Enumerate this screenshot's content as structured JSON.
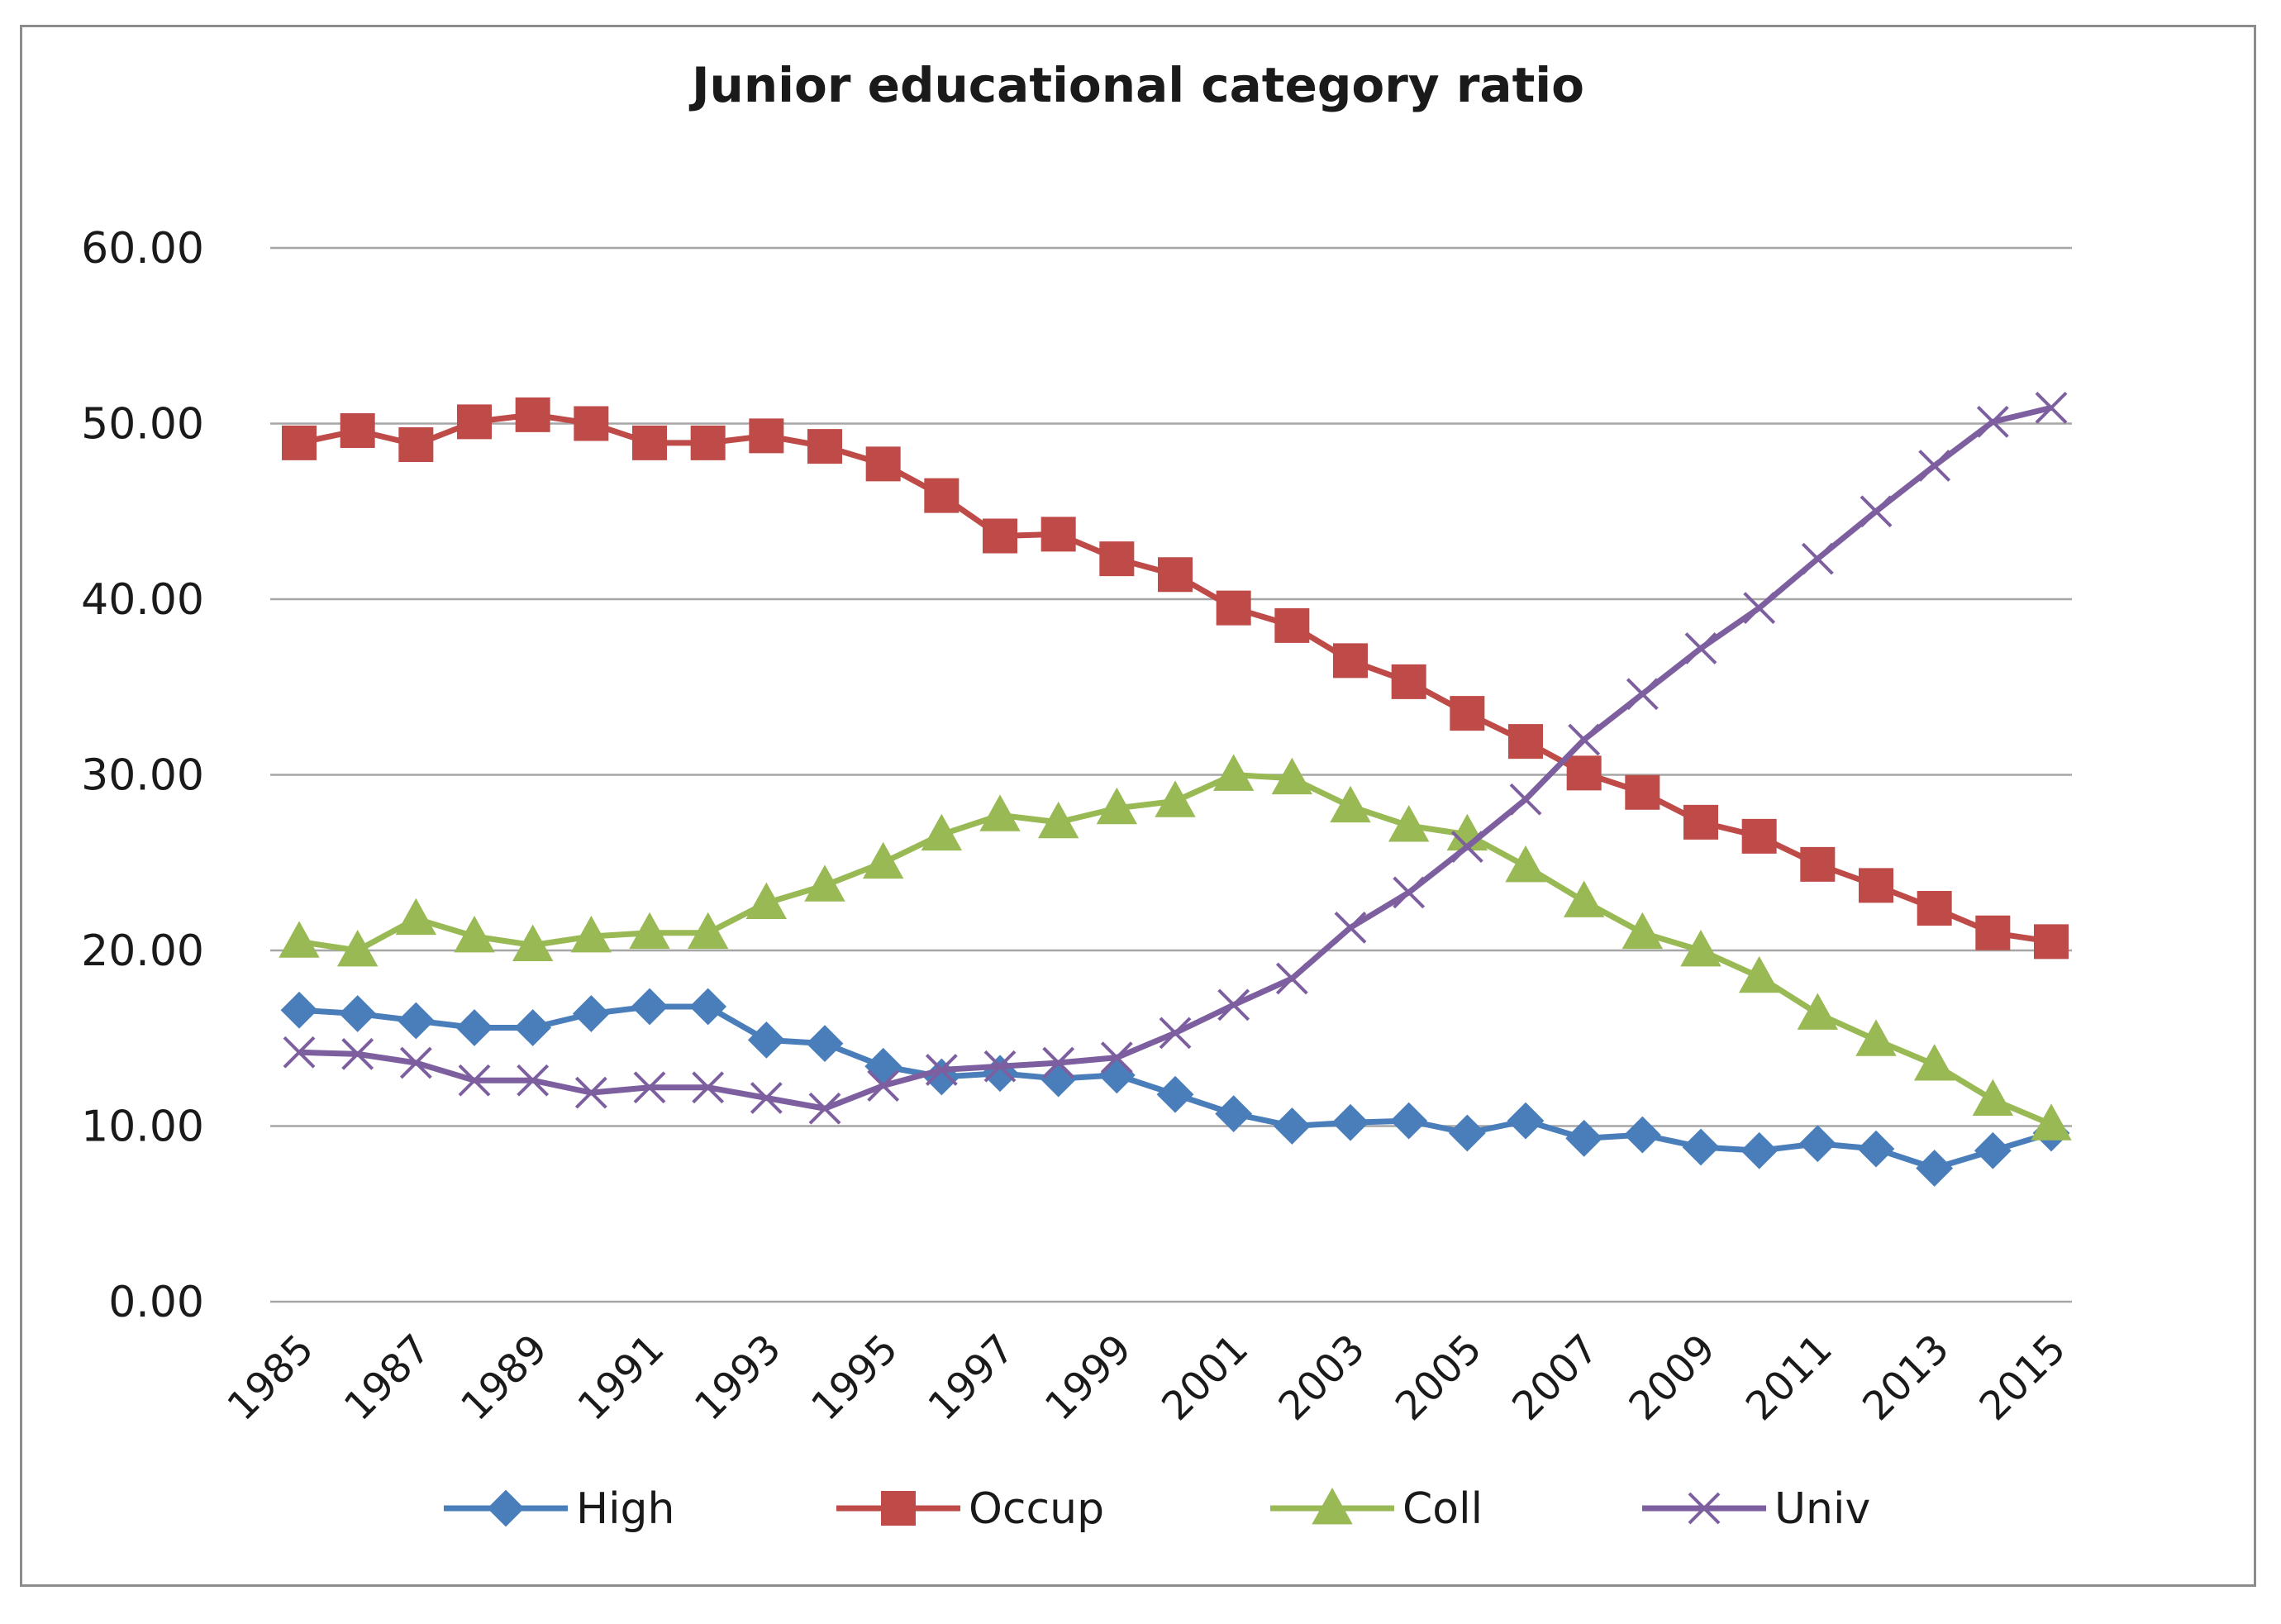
{
  "chart_data": {
    "type": "line",
    "title": "Junior educational category ratio",
    "xlabel": "",
    "ylabel": "",
    "ylim": [
      0,
      60
    ],
    "y_ticks": [
      "0.00",
      "10.00",
      "20.00",
      "30.00",
      "40.00",
      "50.00",
      "60.00"
    ],
    "y_tick_values": [
      0,
      10,
      20,
      30,
      40,
      50,
      60
    ],
    "x": [
      1985,
      1986,
      1987,
      1988,
      1989,
      1990,
      1991,
      1992,
      1993,
      1994,
      1995,
      1996,
      1997,
      1998,
      1999,
      2000,
      2001,
      2002,
      2003,
      2004,
      2005,
      2006,
      2007,
      2008,
      2009,
      2010,
      2011,
      2012,
      2013,
      2014,
      2015
    ],
    "x_tick_labels": [
      "1985",
      "1987",
      "1989",
      "1991",
      "1993",
      "1995",
      "1997",
      "1999",
      "2001",
      "2003",
      "2005",
      "2007",
      "2009",
      "2011",
      "2013",
      "2015"
    ],
    "grid": true,
    "legend_position": "bottom",
    "series": [
      {
        "name": "High",
        "color": "#4A7EBB",
        "marker": "diamond",
        "values": [
          16.6,
          16.4,
          16.0,
          15.6,
          15.6,
          16.4,
          16.8,
          16.8,
          14.9,
          14.7,
          13.4,
          12.8,
          13.0,
          12.7,
          12.9,
          11.8,
          10.7,
          10.0,
          10.2,
          10.3,
          9.6,
          10.3,
          9.3,
          9.5,
          8.8,
          8.6,
          9.0,
          8.7,
          7.6,
          8.6,
          9.6
        ]
      },
      {
        "name": "Occup",
        "color": "#BE4B48",
        "marker": "square",
        "values": [
          48.9,
          49.6,
          48.8,
          50.1,
          50.5,
          50.0,
          48.9,
          48.9,
          49.3,
          48.7,
          47.7,
          45.9,
          43.6,
          43.7,
          42.3,
          41.4,
          39.5,
          38.5,
          36.5,
          35.3,
          33.5,
          31.9,
          30.1,
          29.0,
          27.3,
          26.5,
          24.9,
          23.7,
          22.4,
          21.0,
          20.5
        ]
      },
      {
        "name": "Coll",
        "color": "#98B954",
        "marker": "triangle",
        "values": [
          20.5,
          20.0,
          21.8,
          20.8,
          20.3,
          20.8,
          21.0,
          21.0,
          22.7,
          23.7,
          25.0,
          26.6,
          27.7,
          27.3,
          28.1,
          28.5,
          30.0,
          29.8,
          28.2,
          27.1,
          26.6,
          24.8,
          22.8,
          21.0,
          20.0,
          18.5,
          16.4,
          14.9,
          13.5,
          11.5,
          10.1
        ]
      },
      {
        "name": "Univ",
        "color": "#7D5FA0",
        "marker": "x",
        "values": [
          14.2,
          14.1,
          13.6,
          12.6,
          12.6,
          11.9,
          12.2,
          12.2,
          11.6,
          11.0,
          12.3,
          13.2,
          13.4,
          13.6,
          13.9,
          15.3,
          16.9,
          18.4,
          21.3,
          23.3,
          25.9,
          28.6,
          32.0,
          34.6,
          37.2,
          39.5,
          42.3,
          45.0,
          47.6,
          50.1,
          50.9
        ]
      }
    ]
  }
}
